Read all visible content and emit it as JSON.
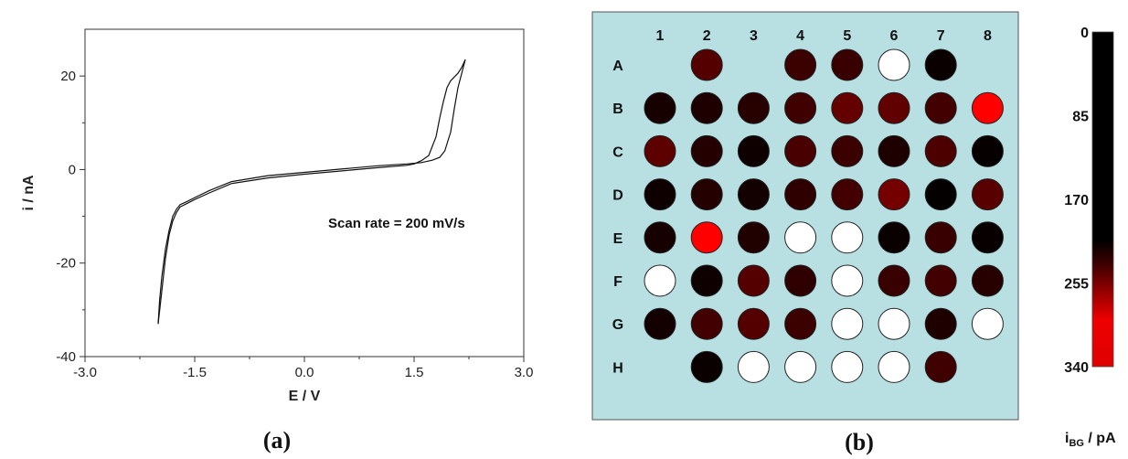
{
  "chart_data": [
    {
      "type": "line",
      "panel_caption": "(a)",
      "title": "",
      "xlabel": "E / V",
      "ylabel": "i / nA",
      "xlim": [
        -3.0,
        3.0
      ],
      "ylim": [
        -40,
        30
      ],
      "xticks": [
        "-3.0",
        "-1.5",
        "0.0",
        "1.5",
        "3.0"
      ],
      "yticks": [
        "-40",
        "-20",
        "0",
        "20"
      ],
      "annotation": "Scan rate = 200 mV/s",
      "grid": false,
      "series": [
        {
          "x": [
            -2.0,
            -1.98,
            -1.95,
            -1.9,
            -1.85,
            -1.8,
            -1.75,
            -1.7,
            -1.6,
            -1.5,
            -1.3,
            -1.0,
            -0.5,
            0.0,
            0.5,
            1.0,
            1.4,
            1.6,
            1.75,
            1.85,
            1.92,
            2.0,
            2.05,
            2.1,
            2.15,
            2.2
          ],
          "y": [
            -33.0,
            -28.0,
            -23.0,
            -17.0,
            -13.0,
            -10.0,
            -8.5,
            -7.5,
            -6.8,
            -6.0,
            -4.5,
            -2.6,
            -1.3,
            -0.6,
            0.1,
            0.8,
            1.2,
            1.5,
            2.0,
            2.6,
            4.0,
            8.0,
            13.0,
            17.5,
            20.5,
            23.5
          ]
        },
        {
          "x": [
            -2.0,
            -1.95,
            -1.9,
            -1.85,
            -1.8,
            -1.75,
            -1.7,
            -1.6,
            -1.5,
            -1.3,
            -1.0,
            -0.5,
            0.0,
            0.5,
            1.0,
            1.4,
            1.5,
            1.6,
            1.7,
            1.8,
            1.85,
            1.9,
            1.95,
            2.0,
            2.05,
            2.1,
            2.15,
            2.2
          ],
          "y": [
            -33.0,
            -26.0,
            -19.0,
            -14.0,
            -11.0,
            -9.2,
            -8.0,
            -7.2,
            -6.4,
            -5.0,
            -3.0,
            -1.8,
            -1.0,
            -0.3,
            0.4,
            0.9,
            1.2,
            1.9,
            3.0,
            7.0,
            11.0,
            14.5,
            17.5,
            19.0,
            19.8,
            20.6,
            21.8,
            23.5
          ]
        }
      ]
    },
    {
      "type": "heatmap",
      "panel_caption": "(b)",
      "title": "",
      "columns": [
        "1",
        "2",
        "3",
        "4",
        "5",
        "6",
        "7",
        "8"
      ],
      "rows": [
        "A",
        "B",
        "C",
        "D",
        "E",
        "F",
        "G",
        "H"
      ],
      "values": [
        [
          null,
          150,
          null,
          115,
          110,
          0,
          30,
          null
        ],
        [
          55,
          70,
          85,
          120,
          170,
          165,
          125,
          340
        ],
        [
          160,
          80,
          40,
          135,
          115,
          70,
          140,
          20
        ],
        [
          40,
          80,
          50,
          95,
          125,
          190,
          15,
          155
        ],
        [
          55,
          340,
          75,
          0,
          0,
          30,
          110,
          25
        ],
        [
          0,
          40,
          150,
          95,
          0,
          110,
          125,
          85
        ],
        [
          50,
          125,
          150,
          115,
          0,
          0,
          70,
          0
        ],
        [
          null,
          30,
          0,
          0,
          0,
          0,
          120,
          null
        ]
      ],
      "colorbar": {
        "ticks": [
          "0",
          "85",
          "170",
          "255",
          "340"
        ],
        "range": [
          0,
          340
        ],
        "label_main": "i",
        "label_sub": "BG",
        "label_unit": " / pA"
      },
      "colors": {
        "plate_background": "#b8dfe2",
        "empty_well": "#ffffff",
        "high": "#ff0000",
        "low": "#000000"
      }
    }
  ]
}
